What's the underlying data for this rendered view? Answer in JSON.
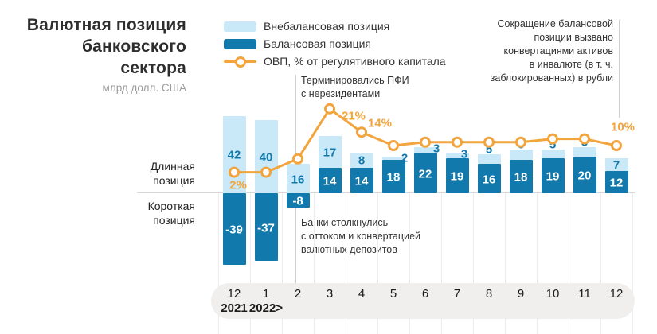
{
  "title": "Валютная позиция\nбанковского\nсектора",
  "subtitle": "млрд долл. США",
  "legend": {
    "items": [
      {
        "label": "Внебалансовая позиция",
        "swatch": "light-blue"
      },
      {
        "label": "Балансовая позиция",
        "swatch": "dark-blue"
      },
      {
        "label": "ОВП, % от регулятивного капитала",
        "swatch": "orange-line"
      }
    ]
  },
  "annotations": {
    "top_right": "Сокращение балансовой\nпозиции вызвано\nконвертациями активов\nв инвалюте (в т. ч.\nзаблокированных) в рубли",
    "middle": "Терминировались ПФИ\nс нерезидентами",
    "bottom": "Банки столкнулись\nс оттоком и конвертацией\nвалютных депозитов"
  },
  "side_labels": {
    "long_position": "Длинная\nпозиция",
    "short_position": "Короткая\nпозиция"
  },
  "colors": {
    "light_blue": "#c9e8f8",
    "dark_blue": "#1279ad",
    "orange": "#f2a43d",
    "pill_gray": "#f0efee",
    "grid_gray": "#ececec"
  },
  "chart_data": {
    "type": "bar+line",
    "title": "Валютная позиция банковского сектора",
    "units": "млрд долл. США",
    "categories": [
      "12",
      "1",
      "2",
      "3",
      "4",
      "5",
      "6",
      "7",
      "8",
      "9",
      "10",
      "11",
      "12"
    ],
    "year_labels": [
      {
        "index": 0,
        "label": "2021"
      },
      {
        "index": 1,
        "label": "2022>"
      }
    ],
    "series": [
      {
        "name": "Внебалансовая позиция",
        "type": "bar",
        "stack": true,
        "values": [
          42,
          40,
          16,
          17,
          8,
          2,
          3,
          3,
          5,
          6,
          5,
          5,
          7
        ]
      },
      {
        "name": "Балансовая позиция",
        "type": "bar",
        "stack": true,
        "values": [
          -39,
          -37,
          -8,
          14,
          14,
          18,
          22,
          19,
          16,
          18,
          19,
          20,
          12
        ]
      },
      {
        "name": "ОВП, % от регулятивного капитала",
        "type": "line",
        "unit": "%",
        "values": [
          2,
          2,
          6,
          21,
          14,
          10,
          11,
          11,
          11,
          11,
          12,
          12,
          10
        ],
        "labeled_points": [
          {
            "index": 0,
            "label": "2%"
          },
          {
            "index": 3,
            "label": "21%"
          },
          {
            "index": 4,
            "label": "14%"
          },
          {
            "index": 12,
            "label": "10%"
          }
        ]
      }
    ],
    "grid": "vertical-below-zero",
    "legend_position": "top"
  }
}
